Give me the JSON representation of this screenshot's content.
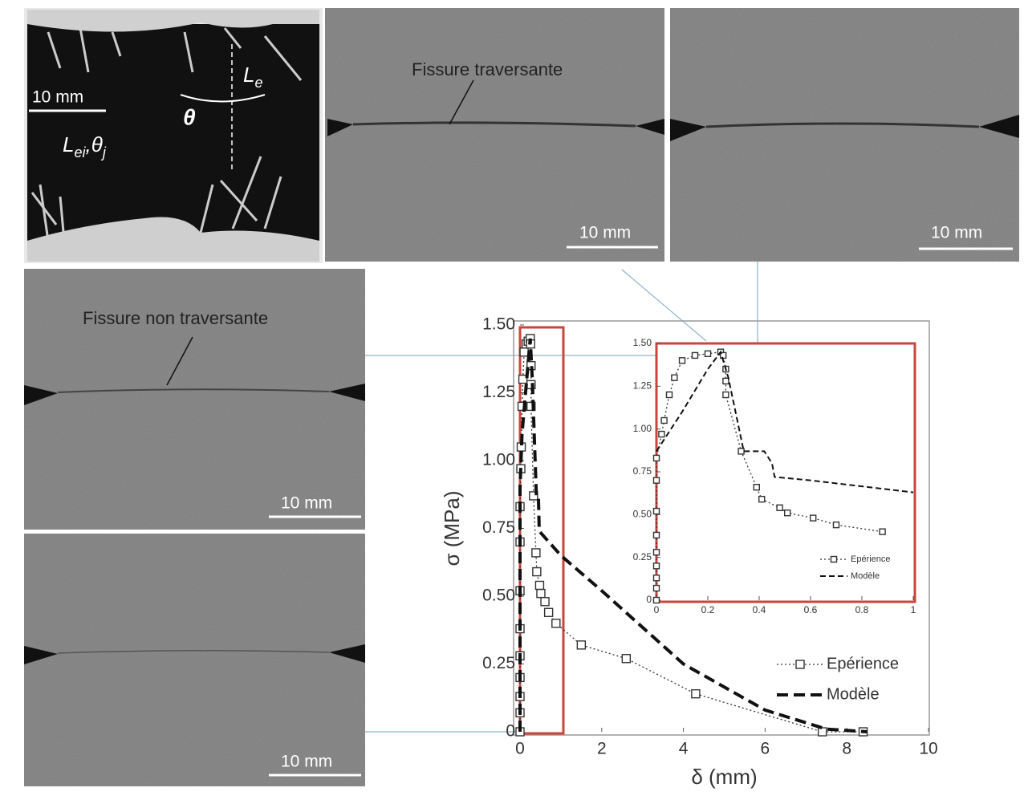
{
  "photos": {
    "fiber": {
      "scale": "10 mm",
      "symbols": [
        {
          "base": "L",
          "sub": "e"
        },
        {
          "base": "θ"
        },
        {
          "base": "L",
          "sub": "ei"
        },
        {
          "base": ",θ",
          "sub": "j"
        }
      ]
    },
    "through_crack_1": {
      "caption": "Fissure traversante",
      "scale": "10 mm"
    },
    "through_crack_2": {
      "scale": "10 mm"
    },
    "partial_crack": {
      "caption": "Fissure non traversante",
      "scale": "10 mm"
    },
    "uncracked": {
      "scale": "10 mm"
    }
  },
  "chart_data": [
    {
      "type": "line",
      "xlabel": "δ (mm)",
      "ylabel": "σ (MPa)",
      "xlim": [
        0,
        10
      ],
      "ylim": [
        0,
        1.5
      ],
      "xticks": [
        0,
        2,
        4,
        6,
        8,
        10
      ],
      "yticks": [
        0,
        0.25,
        {
          "value": 0.5,
          "label": "0.50"
        },
        0.75,
        {
          "value": 1,
          "label": "1.00"
        },
        1.25,
        {
          "value": 1.5,
          "label": "1.50"
        }
      ],
      "legend": "lower right",
      "series": [
        {
          "name": "Epérience",
          "color": "#333333",
          "marker": "square",
          "linestyle": "dotted",
          "x": [
            0,
            0,
            0,
            0,
            0,
            0,
            0,
            0,
            0,
            0.02,
            0.03,
            0.05,
            0.07,
            0.1,
            0.15,
            0.2,
            0.25,
            0.26,
            0.27,
            0.27,
            0.27,
            0.33,
            0.39,
            0.41,
            0.48,
            0.51,
            0.61,
            0.7,
            0.88,
            1.5,
            2.6,
            4.3,
            7.4,
            8.4
          ],
          "values": [
            0,
            0.07,
            0.13,
            0.2,
            0.28,
            0.38,
            0.52,
            0.7,
            0.83,
            0.97,
            1.05,
            1.2,
            1.3,
            1.4,
            1.43,
            1.44,
            1.45,
            1.43,
            1.35,
            1.28,
            1.2,
            0.87,
            0.66,
            0.59,
            0.54,
            0.51,
            0.48,
            0.44,
            0.4,
            0.32,
            0.27,
            0.14,
            0,
            0
          ]
        },
        {
          "name": "Modèle",
          "color": "#111111",
          "marker": "none",
          "linestyle": "dashed",
          "x": [
            0,
            0,
            0.05,
            0.25,
            0.3,
            0.4,
            0.45,
            0.47,
            1,
            2,
            4,
            6,
            7.5,
            8.5
          ],
          "values": [
            0,
            0.9,
            1.1,
            1.45,
            1.3,
            0.87,
            0.87,
            0.74,
            0.65,
            0.52,
            0.25,
            0.08,
            0.01,
            0
          ]
        }
      ]
    },
    {
      "type": "line",
      "xlim": [
        0,
        1
      ],
      "ylim": [
        0,
        1.5
      ],
      "xticks": [
        0,
        0.2,
        0.4,
        0.6,
        0.8,
        1
      ],
      "yticks": [
        0,
        0.25,
        {
          "value": 0.5,
          "label": "0.50"
        },
        0.75,
        {
          "value": 1,
          "label": "1.00"
        },
        1.25,
        {
          "value": 1.5,
          "label": "1.50"
        }
      ],
      "legend": "lower right",
      "series": [
        {
          "name": "Epérience",
          "color": "#333333",
          "marker": "square",
          "linestyle": "dotted",
          "x": [
            0,
            0,
            0,
            0,
            0,
            0,
            0,
            0,
            0,
            0.02,
            0.03,
            0.05,
            0.07,
            0.1,
            0.15,
            0.2,
            0.25,
            0.26,
            0.27,
            0.27,
            0.27,
            0.33,
            0.39,
            0.41,
            0.48,
            0.51,
            0.61,
            0.7,
            0.88
          ],
          "values": [
            0,
            0.07,
            0.13,
            0.2,
            0.28,
            0.38,
            0.52,
            0.7,
            0.83,
            0.97,
            1.05,
            1.2,
            1.3,
            1.4,
            1.43,
            1.44,
            1.45,
            1.43,
            1.35,
            1.28,
            1.2,
            0.87,
            0.66,
            0.59,
            0.54,
            0.51,
            0.48,
            0.44,
            0.4
          ]
        },
        {
          "name": "Modèle",
          "color": "#111111",
          "marker": "none",
          "linestyle": "dashed",
          "x": [
            0,
            0.1,
            0.2,
            0.25,
            0.28,
            0.34,
            0.42,
            0.45,
            0.46,
            0.6,
            1
          ],
          "values": [
            0.87,
            1.1,
            1.35,
            1.45,
            1.3,
            0.87,
            0.87,
            0.8,
            0.72,
            0.7,
            0.63
          ]
        }
      ]
    }
  ]
}
